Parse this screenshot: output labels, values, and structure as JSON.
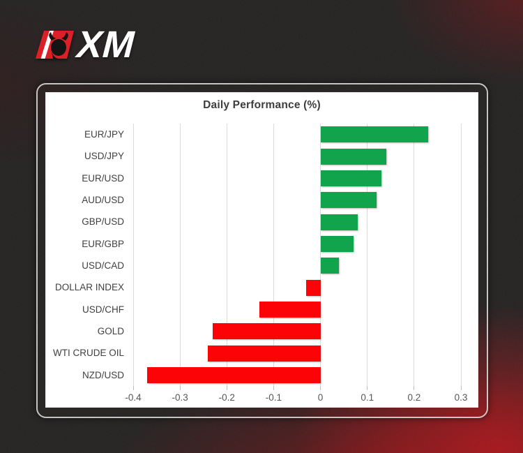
{
  "logo": {
    "brand": "XM",
    "emblem_color": "#dd2027",
    "bull_color": "#141414",
    "slash_color": "#ffffff",
    "text_color": "#ffffff"
  },
  "card": {
    "frame_border_color": "#e1e1e1",
    "panel_color": "#ffffff"
  },
  "chart_data": {
    "type": "bar",
    "orientation": "horizontal",
    "title": "Daily Performance (%)",
    "categories": [
      "EUR/JPY",
      "USD/JPY",
      "EUR/USD",
      "AUD/USD",
      "GBP/USD",
      "EUR/GBP",
      "USD/CAD",
      "DOLLAR INDEX",
      "USD/CHF",
      "GOLD",
      "WTI CRUDE OIL",
      "NZD/USD"
    ],
    "values": [
      0.23,
      0.14,
      0.13,
      0.12,
      0.08,
      0.07,
      0.04,
      -0.03,
      -0.13,
      -0.23,
      -0.24,
      -0.37
    ],
    "xlabel": "",
    "ylabel": "",
    "xlim": [
      -0.4,
      0.3
    ],
    "xtick_values": [
      -0.4,
      -0.3,
      -0.2,
      -0.1,
      0,
      0.1,
      0.2,
      0.3
    ],
    "xtick_labels": [
      "-0.4",
      "-0.3",
      "-0.2",
      "-0.1",
      "0",
      "0.1",
      "0.2",
      "0.3"
    ],
    "grid": true,
    "legend": false,
    "positive_color": "#11a44c",
    "negative_color": "#fb0307",
    "gridline_color": "#dadada",
    "title_color": "#3d3d3d",
    "label_color": "#404040",
    "tick_color": "#555555"
  }
}
